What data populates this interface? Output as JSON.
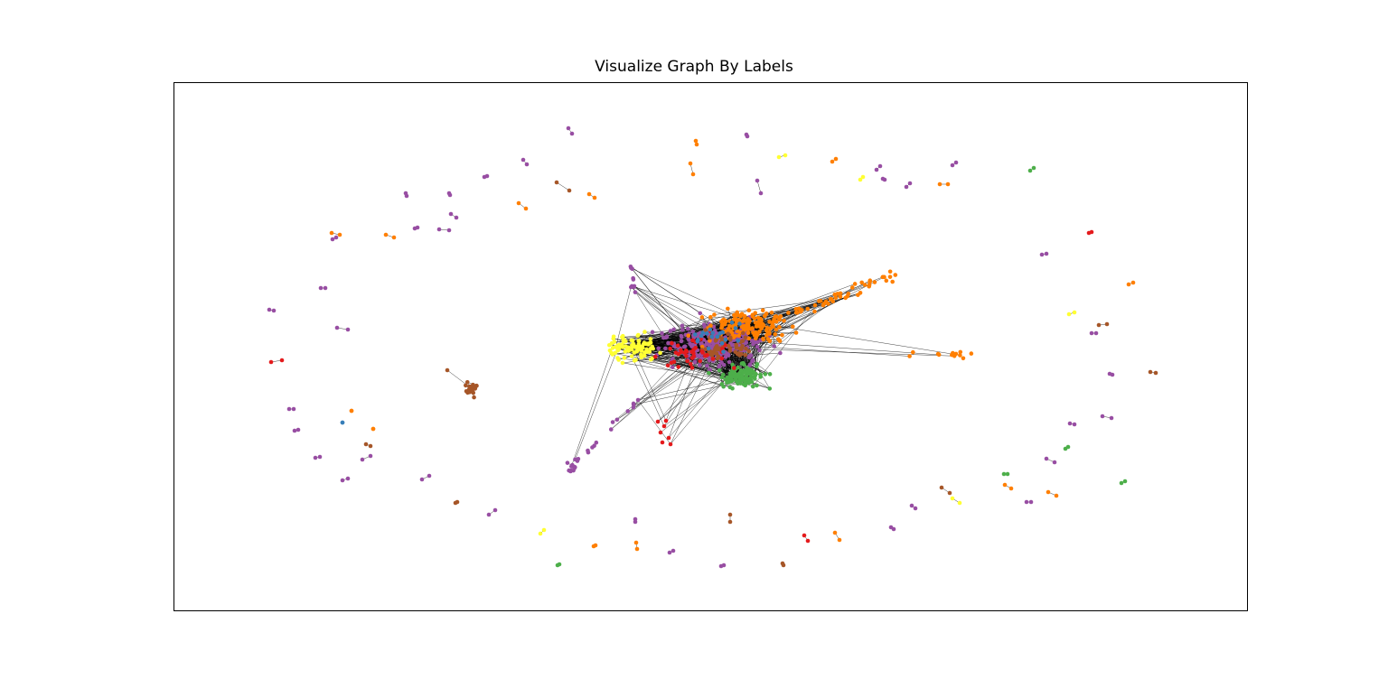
{
  "title": "Visualize Graph By Labels",
  "palette": {
    "purple": "#984ea3",
    "orange": "#ff7f00",
    "yellow": "#ffff33",
    "green": "#4daf4a",
    "brown": "#a65628",
    "red": "#e41a1c",
    "blue": "#377eb8",
    "edge": "#000000"
  },
  "axes": {
    "xticks": false,
    "yticks": false
  }
}
